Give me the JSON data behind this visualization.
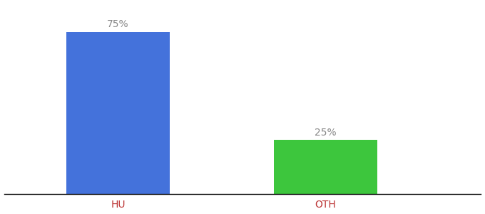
{
  "categories": [
    "HU",
    "OTH"
  ],
  "values": [
    75,
    25
  ],
  "bar_colors": [
    "#4472db",
    "#3dc63d"
  ],
  "label_color": "#888888",
  "axis_label_color": "#bb3333",
  "background_color": "#ffffff",
  "ylim": [
    0,
    88
  ],
  "bar_width": 0.5,
  "figsize": [
    6.8,
    3.0
  ],
  "dpi": 100,
  "label_fontsize": 10,
  "tick_fontsize": 10
}
